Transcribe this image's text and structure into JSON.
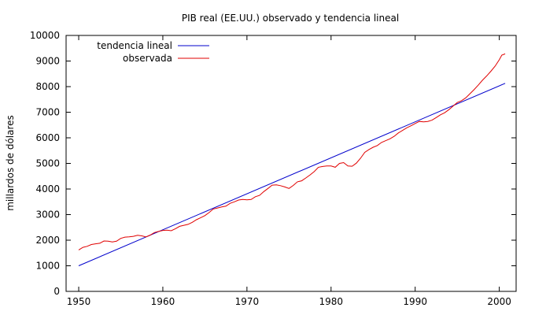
{
  "chart_data": {
    "type": "line",
    "title": "PIB real (EE.UU.) observado y tendencia lineal",
    "xlabel": "",
    "ylabel": "millardos de dólares",
    "xlim": [
      1948.5,
      2002.0
    ],
    "ylim": [
      0,
      10000
    ],
    "x_ticks": [
      1950,
      1960,
      1970,
      1980,
      1990,
      2000
    ],
    "y_ticks": [
      0,
      1000,
      2000,
      3000,
      4000,
      5000,
      6000,
      7000,
      8000,
      9000,
      10000
    ],
    "grid": false,
    "legend_position": "top-left",
    "series": [
      {
        "name": "tendencia lineal",
        "color": "#0000cc",
        "x": [
          1950,
          2000.7
        ],
        "y": [
          1000,
          8130
        ]
      },
      {
        "name": "observada",
        "color": "#e00000",
        "x": [
          1950,
          1950.5,
          1951,
          1951.5,
          1952,
          1952.5,
          1953,
          1953.5,
          1954,
          1954.5,
          1955,
          1955.5,
          1956,
          1956.5,
          1957,
          1957.5,
          1958,
          1958.5,
          1959,
          1959.5,
          1960,
          1960.5,
          1961,
          1961.5,
          1962,
          1962.5,
          1963,
          1963.5,
          1964,
          1964.5,
          1965,
          1965.5,
          1966,
          1966.5,
          1967,
          1967.5,
          1968,
          1968.5,
          1969,
          1969.5,
          1970,
          1970.5,
          1971,
          1971.5,
          1972,
          1972.5,
          1973,
          1973.5,
          1974,
          1974.5,
          1975,
          1975.5,
          1976,
          1976.5,
          1977,
          1977.5,
          1978,
          1978.5,
          1979,
          1979.5,
          1980,
          1980.5,
          1981,
          1981.5,
          1982,
          1982.5,
          1983,
          1983.5,
          1984,
          1984.5,
          1985,
          1985.5,
          1986,
          1986.5,
          1987,
          1987.5,
          1988,
          1988.5,
          1989,
          1989.5,
          1990,
          1990.5,
          1991,
          1991.5,
          1992,
          1992.5,
          1993,
          1993.5,
          1994,
          1994.5,
          1995,
          1995.5,
          1996,
          1996.5,
          1997,
          1997.5,
          1998,
          1998.5,
          1999,
          1999.5,
          2000,
          2000.3,
          2000.7
        ],
        "y": [
          1620,
          1720,
          1760,
          1830,
          1860,
          1880,
          1970,
          1960,
          1930,
          1960,
          2070,
          2120,
          2130,
          2150,
          2190,
          2170,
          2130,
          2200,
          2300,
          2340,
          2380,
          2390,
          2370,
          2450,
          2540,
          2580,
          2620,
          2700,
          2800,
          2880,
          2960,
          3080,
          3220,
          3260,
          3300,
          3330,
          3440,
          3500,
          3570,
          3590,
          3580,
          3590,
          3700,
          3750,
          3900,
          4020,
          4150,
          4160,
          4130,
          4080,
          4020,
          4140,
          4280,
          4320,
          4430,
          4550,
          4680,
          4850,
          4880,
          4900,
          4900,
          4850,
          5000,
          5030,
          4900,
          4890,
          5010,
          5200,
          5430,
          5540,
          5630,
          5700,
          5820,
          5890,
          5960,
          6060,
          6190,
          6290,
          6390,
          6470,
          6560,
          6640,
          6620,
          6640,
          6690,
          6790,
          6900,
          6980,
          7100,
          7240,
          7380,
          7450,
          7560,
          7720,
          7880,
          8060,
          8250,
          8420,
          8600,
          8800,
          9050,
          9230,
          9280
        ]
      }
    ]
  }
}
